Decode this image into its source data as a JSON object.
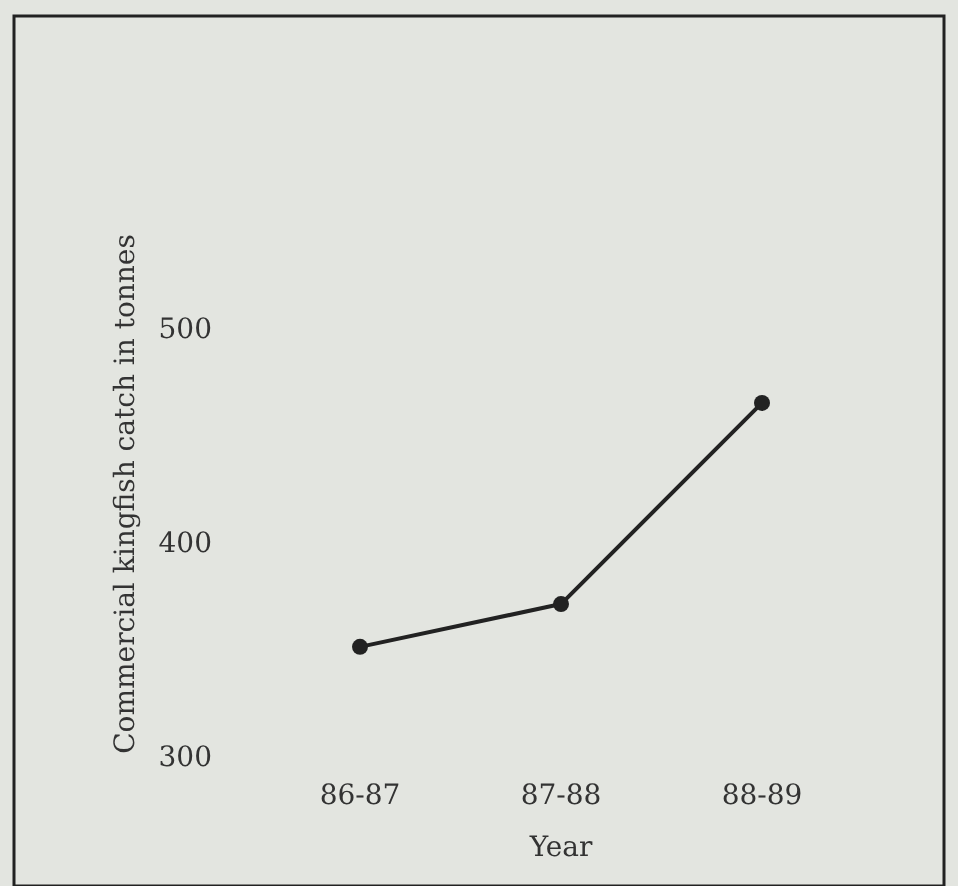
{
  "chart_data": {
    "type": "line",
    "xlabel": "Year",
    "ylabel": "Commercial kingfish catch in tonnes",
    "categories": [
      "86-87",
      "87-88",
      "88-89"
    ],
    "series": [
      {
        "color": "#222222",
        "values": [
          351,
          371,
          465
        ]
      }
    ],
    "ylim": [
      300,
      500
    ],
    "yticks": [
      300,
      400,
      500
    ],
    "marker": "circle",
    "line_style": "solid"
  }
}
